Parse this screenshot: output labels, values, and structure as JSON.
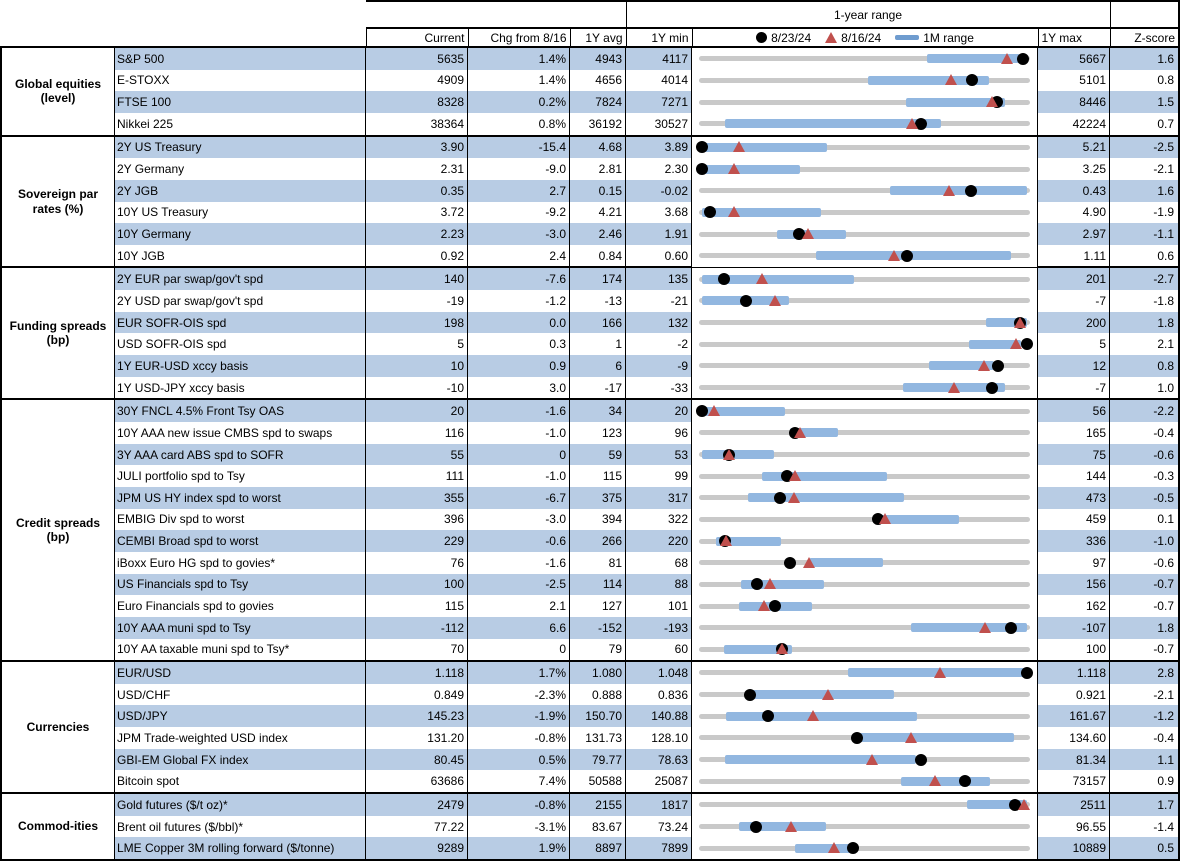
{
  "chart_data": {
    "type": "table",
    "title": "1-year range",
    "columns": {
      "current": "Current",
      "chg": "Chg from 8/16",
      "avg": "1Y avg",
      "min": "1Y min",
      "max": "1Y max",
      "z": "Z-score"
    },
    "legend": {
      "dot_label": "8/23/24",
      "triangle_label": "8/16/24",
      "bar_label": "1M range"
    },
    "colors": {
      "band": "#b8cce4",
      "bar": "#92b7e0",
      "track": "#c9c9c9",
      "triangle": "#c0504d",
      "dot": "#000000"
    },
    "sections": [
      {
        "group": "Global equities (level)",
        "rows": [
          {
            "label": "S&P 500",
            "current": "5635",
            "chg": "1.4%",
            "avg": "4943",
            "min": "4117",
            "max": "5667",
            "z": "1.6",
            "prev": 5557,
            "m1": [
              5183,
              5621
            ]
          },
          {
            "label": "E-STOXX",
            "current": "4909",
            "chg": "1.4%",
            "avg": "4656",
            "min": "4014",
            "max": "5101",
            "z": "0.8",
            "prev": 4841,
            "m1": [
              4569,
              4967
            ]
          },
          {
            "label": "FTSE 100",
            "current": "8328",
            "chg": "0.2%",
            "avg": "7824",
            "min": "7271",
            "max": "8446",
            "z": "1.5",
            "prev": 8311,
            "m1": [
              8005,
              8358
            ]
          },
          {
            "label": "Nikkei 225",
            "current": "38364",
            "chg": "0.8%",
            "avg": "36192",
            "min": "30527",
            "max": "42224",
            "z": "0.7",
            "prev": 38060,
            "m1": [
              31440,
              39065
            ]
          }
        ]
      },
      {
        "group": "Sovereign par rates (%)",
        "rows": [
          {
            "label": "2Y US Treasury",
            "current": "3.90",
            "chg": "-15.4",
            "avg": "4.68",
            "min": "3.89",
            "max": "5.21",
            "z": "-2.5",
            "prev": 4.05,
            "m1": [
              3.89,
              4.4
            ]
          },
          {
            "label": "2Y Germany",
            "current": "2.31",
            "chg": "-9.0",
            "avg": "2.81",
            "min": "2.30",
            "max": "3.25",
            "z": "-2.1",
            "prev": 2.4,
            "m1": [
              2.3,
              2.59
            ]
          },
          {
            "label": "2Y JGB",
            "current": "0.35",
            "chg": "2.7",
            "avg": "0.15",
            "min": "-0.02",
            "max": "0.43",
            "z": "1.6",
            "prev": 0.32,
            "m1": [
              0.24,
              0.43
            ]
          },
          {
            "label": "10Y US Treasury",
            "current": "3.72",
            "chg": "-9.2",
            "avg": "4.21",
            "min": "3.68",
            "max": "4.90",
            "z": "-1.9",
            "prev": 3.81,
            "m1": [
              3.68,
              4.13
            ]
          },
          {
            "label": "10Y Germany",
            "current": "2.23",
            "chg": "-3.0",
            "avg": "2.46",
            "min": "1.91",
            "max": "2.97",
            "z": "-1.1",
            "prev": 2.26,
            "m1": [
              2.16,
              2.38
            ]
          },
          {
            "label": "10Y JGB",
            "current": "0.92",
            "chg": "2.4",
            "avg": "0.84",
            "min": "0.60",
            "max": "1.11",
            "z": "0.6",
            "prev": 0.9,
            "m1": [
              0.78,
              1.08
            ]
          }
        ]
      },
      {
        "group": "Funding spreads (bp)",
        "rows": [
          {
            "label": "2Y EUR par swap/gov't spd",
            "current": "140",
            "chg": "-7.6",
            "avg": "174",
            "min": "135",
            "max": "201",
            "z": "-2.7",
            "prev": 147.6,
            "m1": [
              135,
              166
            ]
          },
          {
            "label": "2Y USD par swap/gov't spd",
            "current": "-19",
            "chg": "-1.2",
            "avg": "-13",
            "min": "-21",
            "max": "-7",
            "z": "-1.8",
            "prev": -17.8,
            "m1": [
              -21,
              -17.2
            ]
          },
          {
            "label": "EUR SOFR-OIS spd",
            "current": "198",
            "chg": "0.0",
            "avg": "166",
            "min": "132",
            "max": "200",
            "z": "1.8",
            "prev": 198,
            "m1": [
              191,
              200
            ]
          },
          {
            "label": "USD SOFR-OIS spd",
            "current": "5",
            "chg": "0.3",
            "avg": "1",
            "min": "-2",
            "max": "5",
            "z": "2.1",
            "prev": 4.7,
            "m1": [
              3.7,
              4.8
            ]
          },
          {
            "label": "1Y EUR-USD xccy basis",
            "current": "10",
            "chg": "0.9",
            "avg": "6",
            "min": "-9",
            "max": "12",
            "z": "0.8",
            "prev": 9.1,
            "m1": [
              5.6,
              9.7
            ]
          },
          {
            "label": "1Y USD-JPY xccy basis",
            "current": "-10",
            "chg": "3.0",
            "avg": "-17",
            "min": "-33",
            "max": "-7",
            "z": "1.0",
            "prev": -13,
            "m1": [
              -17,
              -9
            ]
          }
        ]
      },
      {
        "group": "Credit spreads (bp)",
        "rows": [
          {
            "label": "30Y FNCL 4.5% Front Tsy OAS",
            "current": "20",
            "chg": "-1.6",
            "avg": "34",
            "min": "20",
            "max": "56",
            "z": "-2.2",
            "prev": 21.6,
            "m1": [
              20,
              29.4
            ]
          },
          {
            "label": "10Y AAA new issue CMBS spd to swaps",
            "current": "116",
            "chg": "-1.0",
            "avg": "123",
            "min": "96",
            "max": "165",
            "z": "-0.4",
            "prev": 117,
            "m1": [
              115,
              125
            ]
          },
          {
            "label": "3Y AAA card ABS spd to SOFR",
            "current": "55",
            "chg": "0",
            "avg": "59",
            "min": "53",
            "max": "75",
            "z": "-0.6",
            "prev": 55,
            "m1": [
              53,
              58
            ]
          },
          {
            "label": "JULI portfolio spd to Tsy",
            "current": "111",
            "chg": "-1.0",
            "avg": "115",
            "min": "99",
            "max": "144",
            "z": "-0.3",
            "prev": 112,
            "m1": [
              107.5,
              124.6
            ]
          },
          {
            "label": "JPM US HY index spd to worst",
            "current": "355",
            "chg": "-6.7",
            "avg": "375",
            "min": "317",
            "max": "473",
            "z": "-0.5",
            "prev": 361.7,
            "m1": [
              340,
              413.5
            ]
          },
          {
            "label": "EMBIG Div spd to worst",
            "current": "396",
            "chg": "-3.0",
            "avg": "394",
            "min": "322",
            "max": "459",
            "z": "0.1",
            "prev": 399,
            "m1": [
              396,
              429.7
            ]
          },
          {
            "label": "CEMBI Broad spd to worst",
            "current": "229",
            "chg": "-0.6",
            "avg": "266",
            "min": "220",
            "max": "336",
            "z": "-1.0",
            "prev": 229.6,
            "m1": [
              225.8,
              248.9
            ]
          },
          {
            "label": "iBoxx Euro HG spd to govies*",
            "current": "76",
            "chg": "-1.6",
            "avg": "81",
            "min": "68",
            "max": "97",
            "z": "-0.6",
            "prev": 77.6,
            "m1": [
              77.6,
              84.1
            ]
          },
          {
            "label": "US Financials spd to Tsy",
            "current": "100",
            "chg": "-2.5",
            "avg": "114",
            "min": "88",
            "max": "156",
            "z": "-0.7",
            "prev": 102.5,
            "m1": [
              96.7,
              113.6
            ]
          },
          {
            "label": "Euro Financials spd to govies",
            "current": "115",
            "chg": "2.1",
            "avg": "127",
            "min": "101",
            "max": "162",
            "z": "-0.7",
            "prev": 112.9,
            "m1": [
              108.3,
              121.9
            ]
          },
          {
            "label": "10Y AAA muni spd to Tsy",
            "current": "-112",
            "chg": "6.6",
            "avg": "-152",
            "min": "-193",
            "max": "-107",
            "z": "1.8",
            "prev": -118.6,
            "m1": [
              -138,
              -107
            ]
          },
          {
            "label": "10Y AA taxable muni spd to Tsy*",
            "current": "70",
            "chg": "0",
            "avg": "79",
            "min": "60",
            "max": "100",
            "z": "-0.7",
            "prev": 70,
            "m1": [
              63,
              71.2
            ]
          }
        ]
      },
      {
        "group": "Currencies",
        "rows": [
          {
            "label": "EUR/USD",
            "current": "1.118",
            "chg": "1.7%",
            "avg": "1.080",
            "min": "1.048",
            "max": "1.118",
            "z": "2.8",
            "prev": 1.099,
            "m1": [
              1.0795,
              1.118
            ]
          },
          {
            "label": "USD/CHF",
            "current": "0.849",
            "chg": "-2.3%",
            "avg": "0.888",
            "min": "0.836",
            "max": "0.921",
            "z": "-2.1",
            "prev": 0.869,
            "m1": [
              0.848,
              0.886
            ]
          },
          {
            "label": "USD/JPY",
            "current": "145.23",
            "chg": "-1.9%",
            "avg": "150.70",
            "min": "140.88",
            "max": "161.67",
            "z": "-1.2",
            "prev": 148.04,
            "m1": [
              142.58,
              154.58
            ]
          },
          {
            "label": "JPM Trade-weighted USD index",
            "current": "131.20",
            "chg": "-0.8%",
            "avg": "131.73",
            "min": "128.10",
            "max": "134.60",
            "z": "-0.4",
            "prev": 132.26,
            "m1": [
              131.24,
              134.29
            ]
          },
          {
            "label": "GBI-EM Global FX index",
            "current": "80.45",
            "chg": "0.5%",
            "avg": "79.77",
            "min": "78.63",
            "max": "81.34",
            "z": "1.1",
            "prev": 80.05,
            "m1": [
              78.84,
              80.41
            ]
          },
          {
            "label": "Bitcoin spot",
            "current": "63686",
            "chg": "7.4%",
            "avg": "50588",
            "min": "25087",
            "max": "73157",
            "z": "0.9",
            "prev": 59298,
            "m1": [
              54410,
              67390
            ]
          }
        ]
      },
      {
        "group": "Commod-ities",
        "rows": [
          {
            "label": "Gold futures ($/t oz)*",
            "current": "2479",
            "chg": "-0.8%",
            "avg": "2155",
            "min": "1817",
            "max": "2511",
            "z": "1.7",
            "prev": 2499,
            "m1": [
              2378,
              2511
            ]
          },
          {
            "label": "Brent oil futures ($/bbl)*",
            "current": "77.22",
            "chg": "-3.1%",
            "avg": "83.67",
            "min": "73.24",
            "max": "96.55",
            "z": "-1.4",
            "prev": 79.69,
            "m1": [
              76.08,
              82.21
            ]
          },
          {
            "label": "LME Copper 3M rolling forward ($/tonne)",
            "current": "9289",
            "chg": "1.9%",
            "avg": "8897",
            "min": "7899",
            "max": "10889",
            "z": "0.5",
            "prev": 9116,
            "m1": [
              8766,
              9274
            ]
          }
        ]
      }
    ]
  }
}
